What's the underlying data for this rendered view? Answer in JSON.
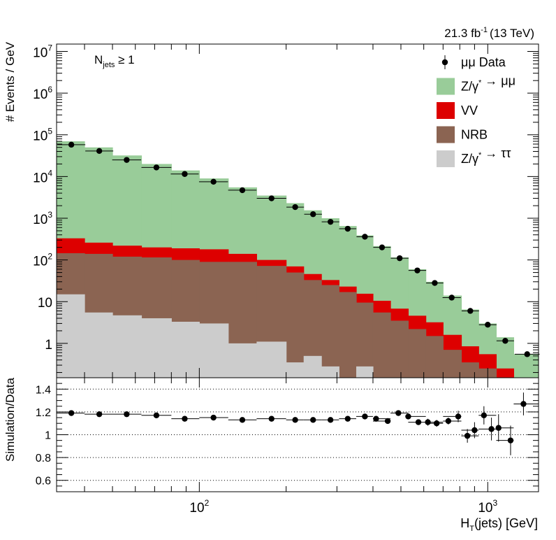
{
  "chart_data": [
    {
      "type": "bar",
      "stacked": true,
      "log_x": true,
      "log_y": true,
      "xlim": [
        32,
        1500
      ],
      "ylim": [
        0.15,
        15000000
      ],
      "ylabel": "# Events / GeV",
      "lumi_label": "21.3 fb",
      "lumi_exp": "-1",
      "lumi_energy": "(13 TeV)",
      "selection": {
        "main": "N",
        "sub": "jets",
        "rest": " ≥ 1"
      },
      "y_ticks": [
        {
          "value": 1,
          "base": "1",
          "exp": ""
        },
        {
          "value": 10,
          "base": "10",
          "exp": ""
        },
        {
          "value": 100,
          "base": "10",
          "exp": "2"
        },
        {
          "value": 1000,
          "base": "10",
          "exp": "3"
        },
        {
          "value": 10000,
          "base": "10",
          "exp": "4"
        },
        {
          "value": 100000,
          "base": "10",
          "exp": "5"
        },
        {
          "value": 1000000,
          "base": "10",
          "exp": "6"
        },
        {
          "value": 10000000,
          "base": "10",
          "exp": "7"
        }
      ],
      "legend": [
        {
          "kind": "marker",
          "parts": [
            {
              "t": "μμ Data"
            }
          ]
        },
        {
          "kind": "fill",
          "color": "#99cc99",
          "parts": [
            {
              "t": "Z/γ"
            },
            {
              "t": "*",
              "sup": true
            },
            {
              "t": " → μμ"
            }
          ]
        },
        {
          "kind": "fill",
          "color": "#dd0000",
          "parts": [
            {
              "t": "VV"
            }
          ]
        },
        {
          "kind": "fill",
          "color": "#8b6452",
          "parts": [
            {
              "t": "NRB"
            }
          ]
        },
        {
          "kind": "fill",
          "color": "#cccccc",
          "parts": [
            {
              "t": "Z/γ"
            },
            {
              "t": "*",
              "sup": true
            },
            {
              "t": " → ττ"
            }
          ]
        }
      ],
      "bin_edges": [
        32,
        40,
        50,
        63,
        80,
        100,
        126,
        158,
        200,
        230,
        265,
        305,
        350,
        400,
        460,
        530,
        610,
        700,
        810,
        930,
        1070,
        1230,
        1500
      ],
      "series": [
        {
          "name": "Z/γ* → ττ",
          "color": "#cccccc",
          "top": [
            15,
            5.5,
            4.7,
            4,
            3.3,
            3,
            1,
            1.1,
            0.35,
            0.5,
            0.28,
            0.1,
            0.28,
            0.12,
            0.13,
            0.1,
            0.08,
            0.07,
            0.06,
            0.05,
            0.05,
            0.04
          ]
        },
        {
          "name": "NRB",
          "color": "#8b6452",
          "top": [
            145,
            140,
            120,
            115,
            100,
            90,
            90,
            72,
            50,
            33,
            25,
            17,
            9.5,
            5.5,
            3.5,
            2.2,
            1.5,
            0.7,
            0.35,
            0.25,
            0.12,
            0.08
          ]
        },
        {
          "name": "VV",
          "color": "#dd0000",
          "top": [
            330,
            260,
            220,
            200,
            190,
            180,
            140,
            100,
            70,
            46,
            33,
            23,
            15.5,
            10.5,
            6.8,
            4.6,
            3.2,
            1.6,
            0.85,
            0.55,
            0.25,
            0.12
          ]
        },
        {
          "name": "Z/γ* → μμ",
          "color": "#99cc99",
          "top": [
            70000,
            50000,
            32000,
            20000,
            14000,
            9000,
            5500,
            3500,
            2300,
            1550,
            1000,
            650,
            390,
            215,
            115,
            60,
            30,
            14,
            6.5,
            3.0,
            1.4,
            0.55
          ]
        }
      ],
      "data": {
        "name": "μμ Data",
        "x": [
          36,
          45,
          56,
          71,
          89,
          112,
          141,
          178,
          215,
          248,
          285,
          327,
          375,
          430,
          495,
          570,
          655,
          750,
          870,
          1000,
          1150,
          1370
        ],
        "y": [
          58000,
          41000,
          25000,
          16500,
          11500,
          7500,
          4700,
          3000,
          1850,
          1250,
          820,
          560,
          360,
          200,
          110,
          56,
          28,
          12.5,
          6,
          2.8,
          1.15,
          0.55
        ]
      }
    },
    {
      "type": "scatter",
      "log_x": true,
      "xlim": [
        32,
        1500
      ],
      "ylim": [
        0.5,
        1.5
      ],
      "xlabel": "H",
      "xlabel_sub": "T",
      "xlabel_rest": "(jets) [GeV]",
      "ylabel": "Simulation/Data",
      "y_ticks": [
        "0.6",
        "0.8",
        "1",
        "1.2",
        "1.4"
      ],
      "y_tick_values": [
        0.6,
        0.8,
        1.0,
        1.2,
        1.4
      ],
      "gridlines": [
        0.6,
        0.8,
        1.0,
        1.2,
        1.4
      ],
      "x_ticks": [
        {
          "value": 100,
          "base": "10",
          "exp": "2"
        },
        {
          "value": 1000,
          "base": "10",
          "exp": "3"
        }
      ],
      "x": [
        36,
        45,
        56,
        71,
        89,
        112,
        141,
        178,
        215,
        248,
        285,
        327,
        375,
        410,
        450,
        490,
        530,
        575,
        620,
        665,
        730,
        790,
        850,
        900,
        970,
        1030,
        1090,
        1200,
        1330
      ],
      "y": [
        1.19,
        1.18,
        1.18,
        1.17,
        1.14,
        1.15,
        1.13,
        1.14,
        1.13,
        1.13,
        1.13,
        1.14,
        1.16,
        1.14,
        1.12,
        1.19,
        1.16,
        1.11,
        1.11,
        1.1,
        1.12,
        1.16,
        0.99,
        1.04,
        1.17,
        1.05,
        1.06,
        0.95,
        1.27
      ],
      "yerr": [
        0.01,
        0.01,
        0.01,
        0.01,
        0.01,
        0.01,
        0.01,
        0.01,
        0.01,
        0.01,
        0.01,
        0.01,
        0.01,
        0.01,
        0.01,
        0.01,
        0.02,
        0.02,
        0.03,
        0.03,
        0.03,
        0.05,
        0.06,
        0.07,
        0.08,
        0.1,
        0.12,
        0.13,
        0.1
      ]
    }
  ]
}
